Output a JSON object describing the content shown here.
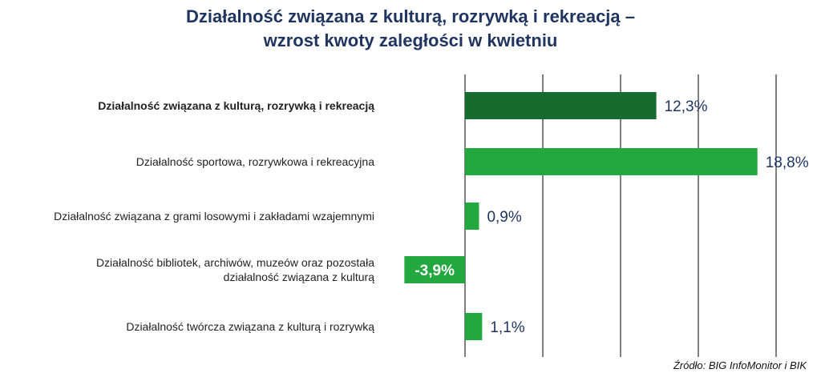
{
  "title_line1": "Działalność związana z kulturą, rozrywką i rekreacją –",
  "title_line2": "wzrost kwoty zaległości w kwietniu",
  "source": "Źródło: BIG InfoMonitor i BIK",
  "colors": {
    "title": "#1f3560",
    "value_label": "#1f3560",
    "bar_highlight": "#156b2c",
    "bar_default": "#23a83f",
    "label_on_bar": "#ffffff",
    "gridline": "#000000"
  },
  "chart_data": {
    "type": "bar",
    "orientation": "horizontal",
    "title": "Działalność związana z kulturą, rozrywką i rekreacją – wzrost kwoty zaległości w kwietniu",
    "xlim": [
      -4,
      20
    ],
    "gridlines_at": [
      0,
      5,
      10,
      15,
      20
    ],
    "categories": [
      "Działalność związana z kulturą, rozrywką i rekreacją",
      "Działalność sportowa, rozrywkowa i rekreacyjna",
      "Działalność związana z grami losowymi i zakładami wzajemnymi",
      "Działalność bibliotek, archiwów, muzeów oraz pozostała działalność związana z kulturą",
      "Działalność twórcza związana z kulturą i rozrywką"
    ],
    "category_lines": [
      [
        "Działalność związana z kulturą, rozrywką i rekreacją"
      ],
      [
        "Działalność sportowa, rozrywkowa i rekreacyjna"
      ],
      [
        "Działalność związana z grami losowymi i zakładami wzajemnymi"
      ],
      [
        "Działalność bibliotek, archiwów, muzeów oraz pozostała",
        "działalność związana z kulturą"
      ],
      [
        "Działalność twórcza związana z kulturą i rozrywką"
      ]
    ],
    "values": [
      12.3,
      18.8,
      0.9,
      -3.9,
      1.1
    ],
    "value_labels": [
      "12,3%",
      "18,8%",
      "0,9%",
      "-3,9%",
      "1,1%"
    ],
    "highlight_index": 0,
    "unit": "%"
  }
}
